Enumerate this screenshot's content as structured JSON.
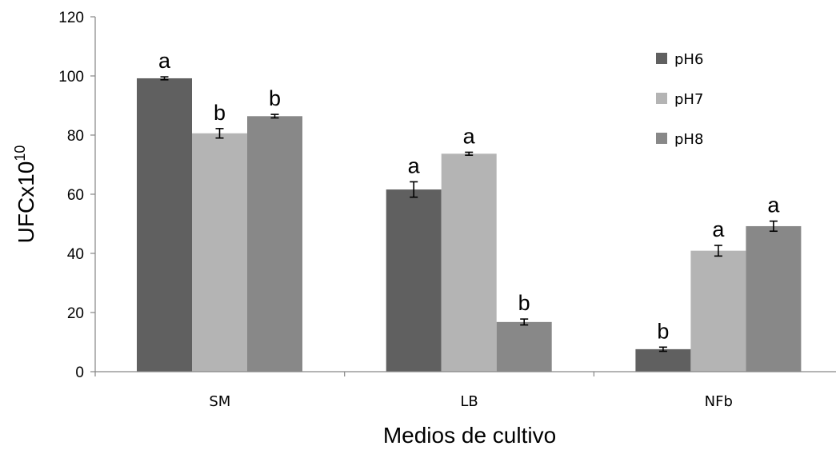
{
  "chart_data": {
    "type": "bar",
    "title": "",
    "xlabel": "Medios de cultivo",
    "ylabel": {
      "base": "UFCx10",
      "exponent": "10"
    },
    "ylim": [
      0,
      120
    ],
    "yticks": [
      0,
      20,
      40,
      60,
      80,
      100,
      120
    ],
    "categories": [
      "SM",
      "LB",
      "NFb"
    ],
    "legend_position": "top-right",
    "grid": false,
    "series": [
      {
        "name": "pH6",
        "color": "#606060",
        "values": [
          99.2,
          61.6,
          7.6
        ],
        "errors": [
          0.5,
          2.6,
          0.7
        ],
        "letters": [
          "a",
          "a",
          "b"
        ]
      },
      {
        "name": "pH7",
        "color": "#b4b4b4",
        "values": [
          80.6,
          73.7,
          40.9
        ],
        "errors": [
          1.6,
          0.5,
          1.8
        ],
        "letters": [
          "b",
          "a",
          "a"
        ]
      },
      {
        "name": "pH8",
        "color": "#888888",
        "values": [
          86.4,
          16.8,
          49.2
        ],
        "errors": [
          0.6,
          1.0,
          1.7
        ],
        "letters": [
          "b",
          "b",
          "a"
        ]
      }
    ]
  }
}
